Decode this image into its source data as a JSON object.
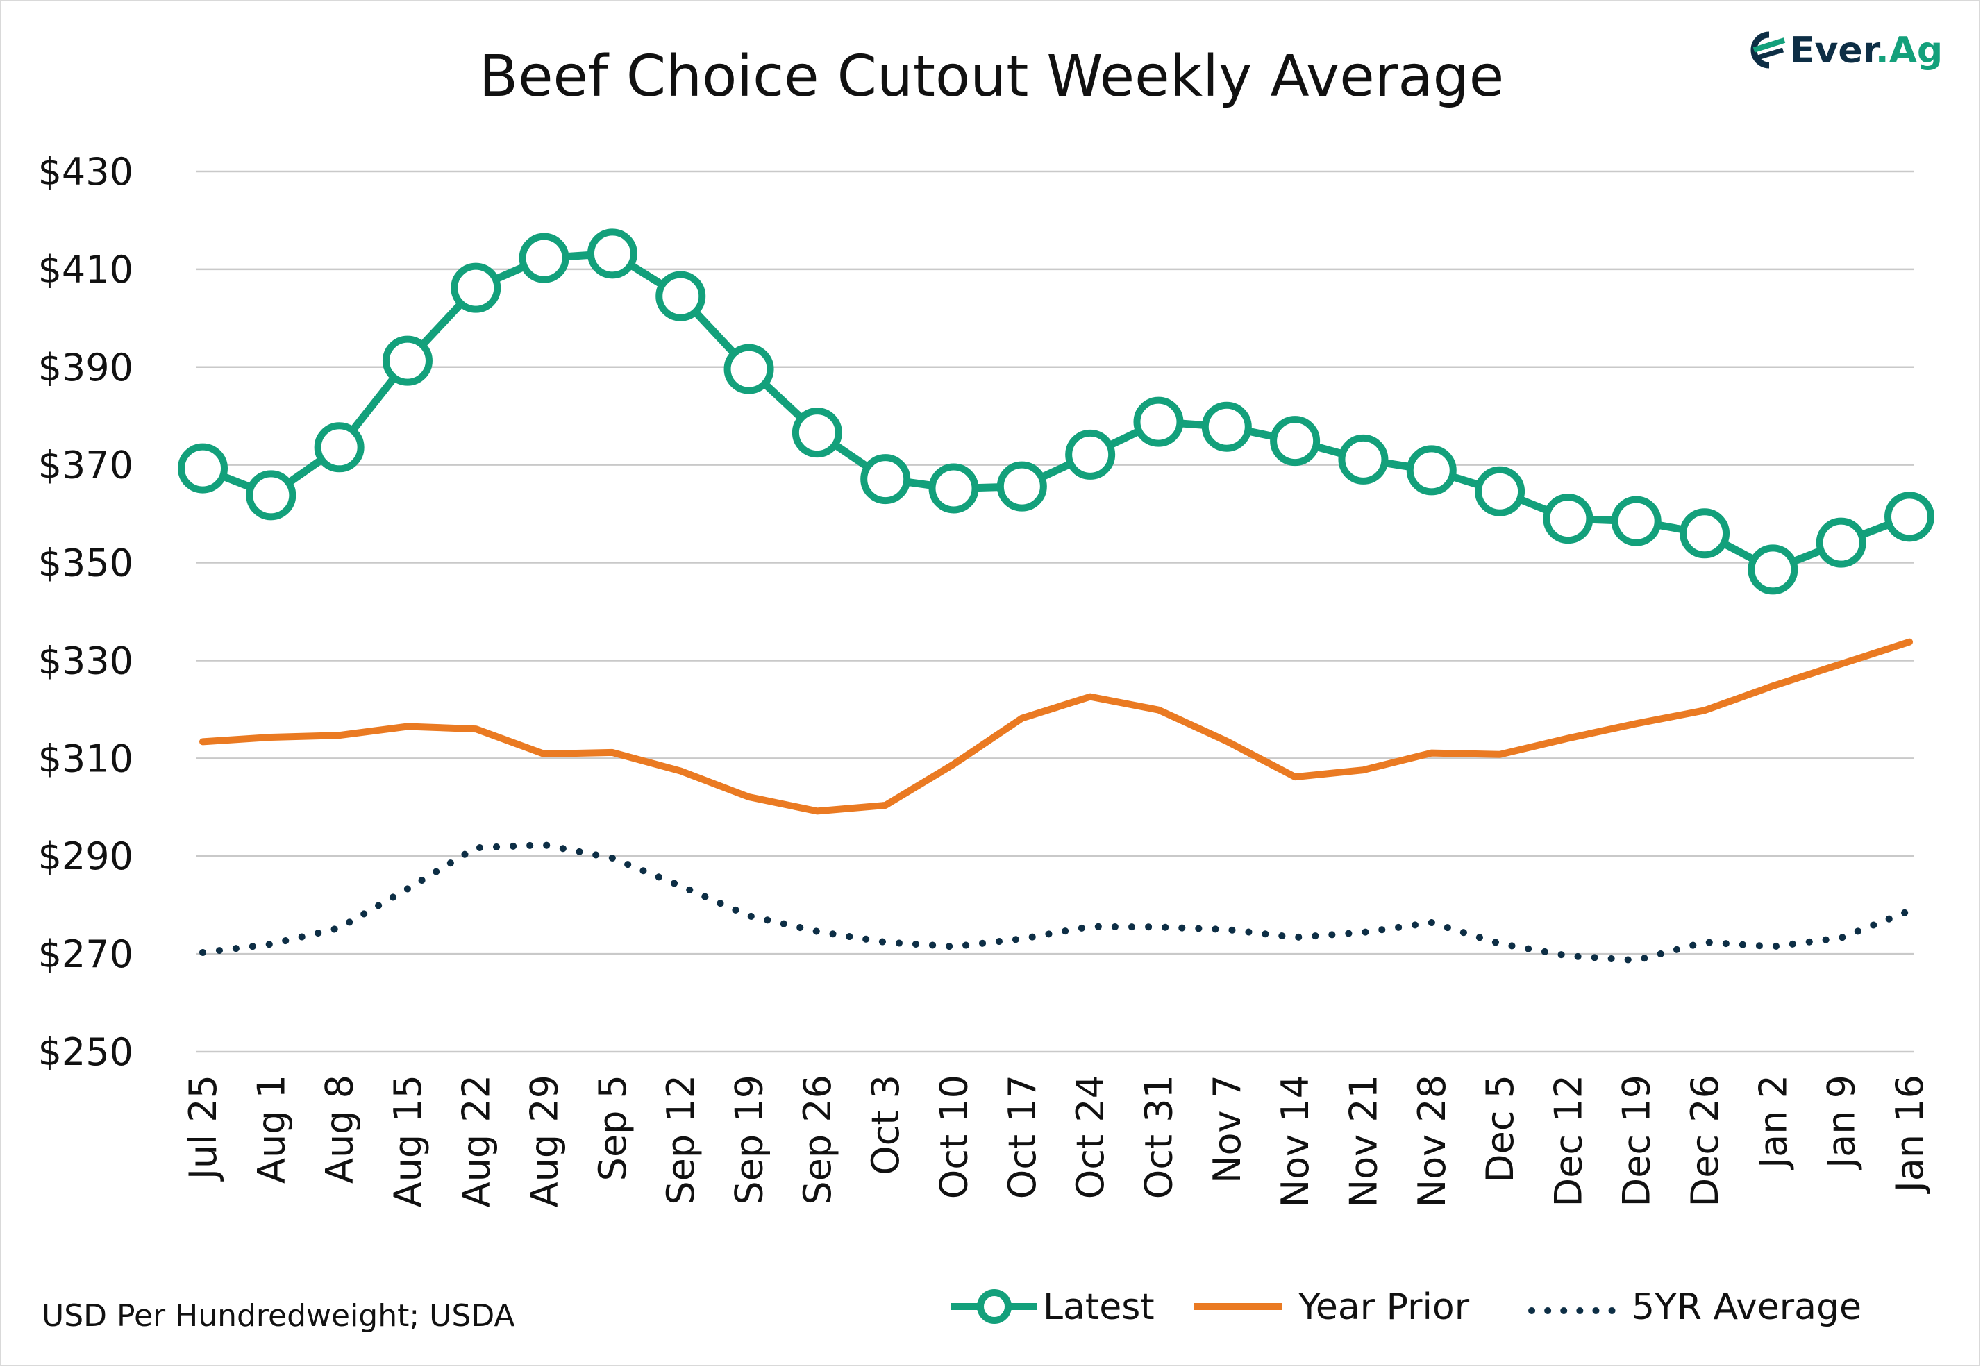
{
  "chart_data": {
    "type": "line",
    "title": "Beef Choice Cutout Weekly Average",
    "source_note": "USD Per Hundredweight; USDA",
    "brand": {
      "name_prefix": "Ever",
      "name_dot": ".",
      "name_suffix": "Ag"
    },
    "ylim": [
      250,
      430
    ],
    "yticks": [
      250,
      270,
      290,
      310,
      330,
      350,
      370,
      390,
      410,
      430
    ],
    "ytick_labels": [
      "$250",
      "$270",
      "$290",
      "$310",
      "$330",
      "$350",
      "$370",
      "$390",
      "$410",
      "$430"
    ],
    "categories": [
      "Jul 25",
      "Aug 1",
      "Aug 8",
      "Aug 15",
      "Aug 22",
      "Aug 29",
      "Sep 5",
      "Sep 12",
      "Sep 19",
      "Sep 26",
      "Oct 3",
      "Oct 10",
      "Oct 17",
      "Oct 24",
      "Oct 31",
      "Nov 7",
      "Nov 14",
      "Nov 21",
      "Nov 28",
      "Dec 5",
      "Dec 12",
      "Dec 19",
      "Dec 26",
      "Jan 2",
      "Jan 9",
      "Jan 16"
    ],
    "grid": true,
    "legend_position": "bottom-right",
    "series": [
      {
        "name": "Latest",
        "style": "line-marker",
        "color": "#13a07b",
        "values": [
          369.3,
          363.8,
          373.6,
          391.3,
          406.2,
          412.3,
          413.2,
          404.5,
          389.6,
          376.6,
          367.1,
          365.2,
          365.6,
          372.1,
          378.8,
          377.8,
          374.9,
          371.1,
          368.9,
          364.6,
          359.0,
          358.5,
          356.0,
          348.6,
          354.1,
          359.4
        ]
      },
      {
        "name": "Year Prior",
        "style": "line",
        "color": "#ea7a22",
        "values": [
          313.4,
          314.3,
          314.7,
          316.5,
          316.0,
          310.9,
          311.2,
          307.4,
          302.1,
          299.2,
          300.4,
          308.8,
          318.2,
          322.6,
          319.9,
          313.5,
          306.2,
          307.6,
          311.1,
          310.8,
          314.1,
          317.1,
          319.8,
          324.8,
          329.3,
          333.8
        ]
      },
      {
        "name": "5YR Average",
        "style": "dotted",
        "color": "#0d2e45",
        "values": [
          270.3,
          272.0,
          275.3,
          283.3,
          291.7,
          292.3,
          289.6,
          283.9,
          277.8,
          274.6,
          272.4,
          271.5,
          273.1,
          275.6,
          275.5,
          275.0,
          273.4,
          274.4,
          276.4,
          272.1,
          269.6,
          268.7,
          272.4,
          271.5,
          273.3,
          278.8
        ]
      }
    ]
  }
}
